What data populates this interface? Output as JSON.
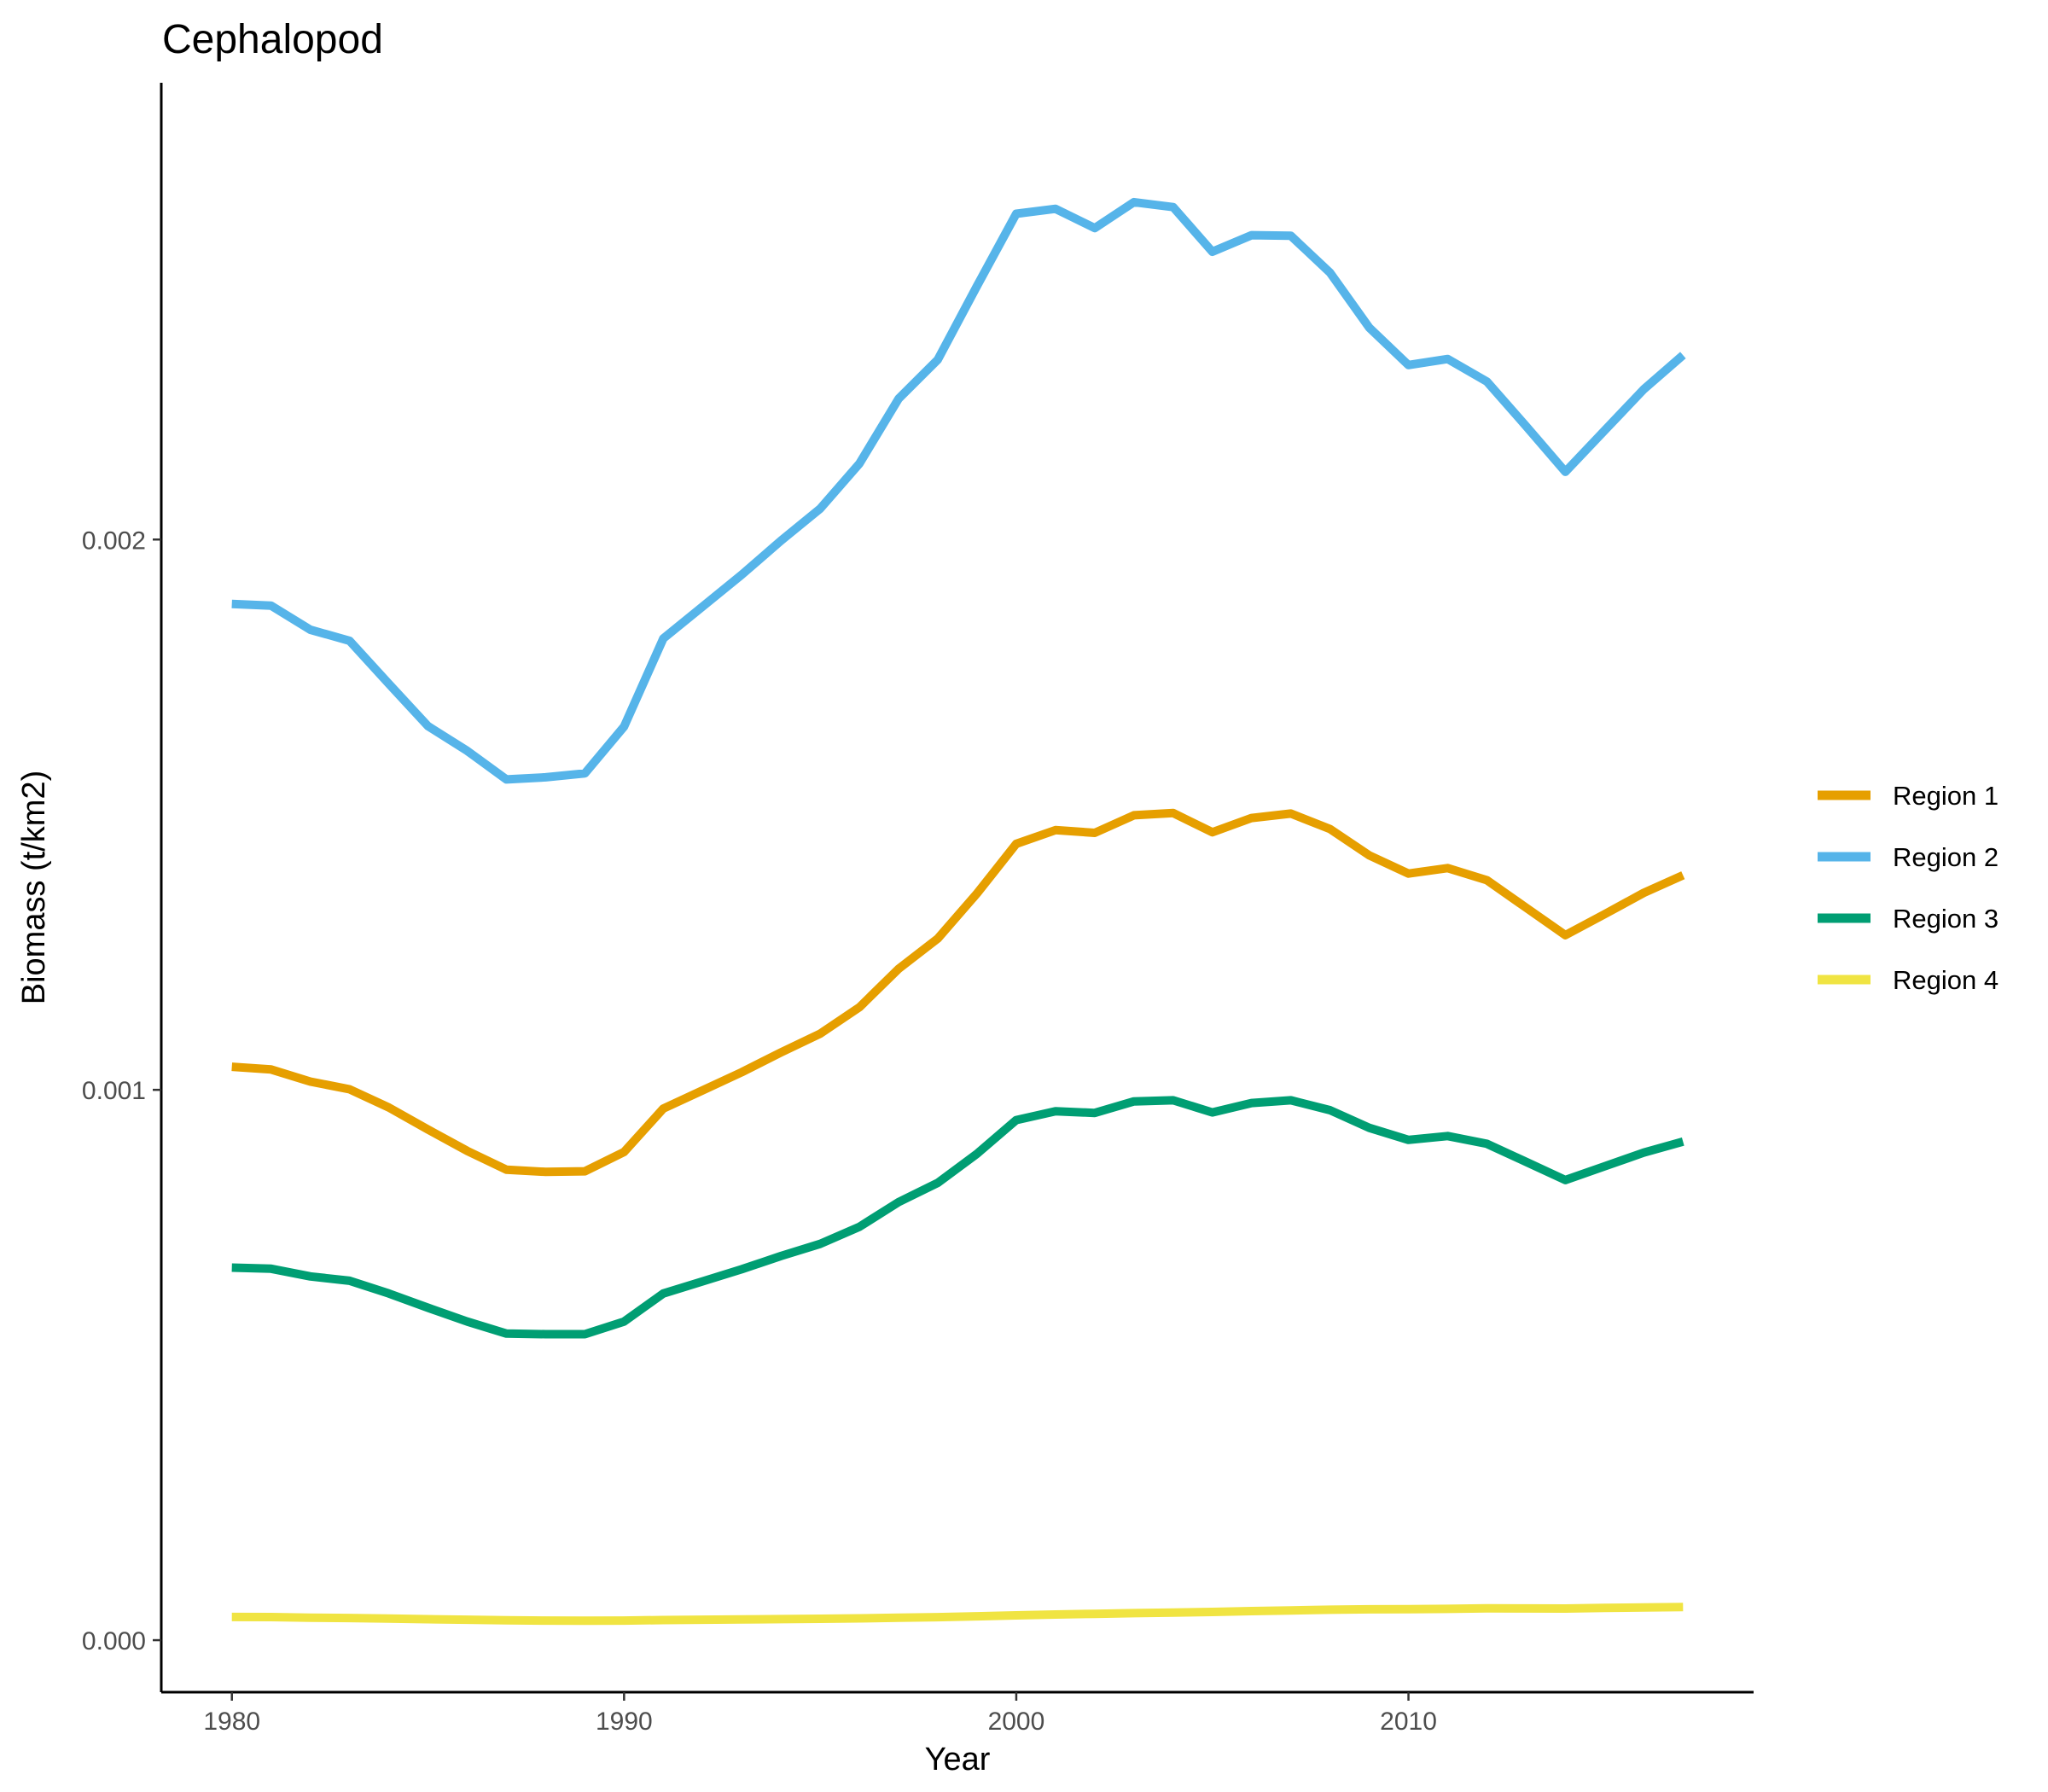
{
  "chart_data": {
    "type": "line",
    "title": "Cephalopod",
    "xlabel": "Year",
    "ylabel": "Biomass (t/km2)",
    "xlim": [
      1978.2,
      2018.8
    ],
    "ylim": [
      -9.45e-05,
      0.00283
    ],
    "x_ticks": [
      1980,
      1990,
      2000,
      2010
    ],
    "y_ticks": [
      0.0,
      0.001,
      0.002
    ],
    "y_tick_labels": [
      "0.000",
      "0.001",
      "0.002"
    ],
    "grid": false,
    "legend_position": "right",
    "x": [
      1980,
      1981,
      1982,
      1983,
      1984,
      1985,
      1986,
      1987,
      1988,
      1989,
      1990,
      1991,
      1992,
      1993,
      1994,
      1995,
      1996,
      1997,
      1998,
      1999,
      2000,
      2001,
      2002,
      2003,
      2004,
      2005,
      2006,
      2007,
      2008,
      2009,
      2010,
      2011,
      2012,
      2013,
      2014,
      2015,
      2016,
      2017
    ],
    "series": [
      {
        "name": "Region 1",
        "color": "#E69F00",
        "values": [
          0.001042,
          0.001037,
          0.001015,
          0.001001,
          0.000968,
          0.000928,
          0.000889,
          0.000855,
          0.000851,
          0.000852,
          0.000887,
          0.000966,
          0.000999,
          0.001032,
          0.001068,
          0.001102,
          0.00115,
          0.00122,
          0.001275,
          0.001357,
          0.001447,
          0.001472,
          0.001467,
          0.001499,
          0.001503,
          0.001468,
          0.001494,
          0.001502,
          0.001474,
          0.001426,
          0.001393,
          0.001403,
          0.001381,
          0.001331,
          0.001281,
          0.001319,
          0.001358,
          0.00139
        ]
      },
      {
        "name": "Region 2",
        "color": "#56B4E9",
        "values": [
          0.001883,
          0.00188,
          0.001836,
          0.001816,
          0.001738,
          0.001661,
          0.001616,
          0.001564,
          0.001568,
          0.001575,
          0.00166,
          0.00182,
          0.001878,
          0.001936,
          0.001998,
          0.002056,
          0.002138,
          0.002256,
          0.002327,
          0.002461,
          0.002592,
          0.002601,
          0.002566,
          0.002613,
          0.002604,
          0.002523,
          0.002553,
          0.002552,
          0.002485,
          0.002385,
          0.002317,
          0.002328,
          0.002287,
          0.002206,
          0.002123,
          0.002198,
          0.002273,
          0.002335
        ]
      },
      {
        "name": "Region 3",
        "color": "#009E73",
        "values": [
          0.000677,
          0.000675,
          0.000661,
          0.000653,
          0.00063,
          0.000604,
          0.000579,
          0.000557,
          0.000556,
          0.000556,
          0.000579,
          0.00063,
          0.000652,
          0.000674,
          0.000698,
          0.00072,
          0.000751,
          0.000796,
          0.000831,
          0.000884,
          0.000945,
          0.000961,
          0.000958,
          0.000979,
          0.000981,
          0.000959,
          0.000976,
          0.000981,
          0.000963,
          0.000931,
          0.000909,
          0.000916,
          0.000902,
          0.000869,
          0.000836,
          0.000861,
          0.000886,
          0.000906
        ]
      },
      {
        "name": "Region 4",
        "color": "#F0E442",
        "values": [
          4.21e-05,
          4.2e-05,
          4.09e-05,
          4.03e-05,
          3.92e-05,
          3.81e-05,
          3.71e-05,
          3.61e-05,
          3.56e-05,
          3.54e-05,
          3.56e-05,
          3.65e-05,
          3.71e-05,
          3.76e-05,
          3.82e-05,
          3.88e-05,
          3.96e-05,
          4.08e-05,
          4.18e-05,
          4.33e-05,
          4.51e-05,
          4.66e-05,
          4.78e-05,
          4.91e-05,
          5.02e-05,
          5.12e-05,
          5.28e-05,
          5.41e-05,
          5.53e-05,
          5.61e-05,
          5.63e-05,
          5.69e-05,
          5.77e-05,
          5.76e-05,
          5.74e-05,
          5.85e-05,
          5.94e-05,
          6.03e-05
        ]
      }
    ]
  }
}
